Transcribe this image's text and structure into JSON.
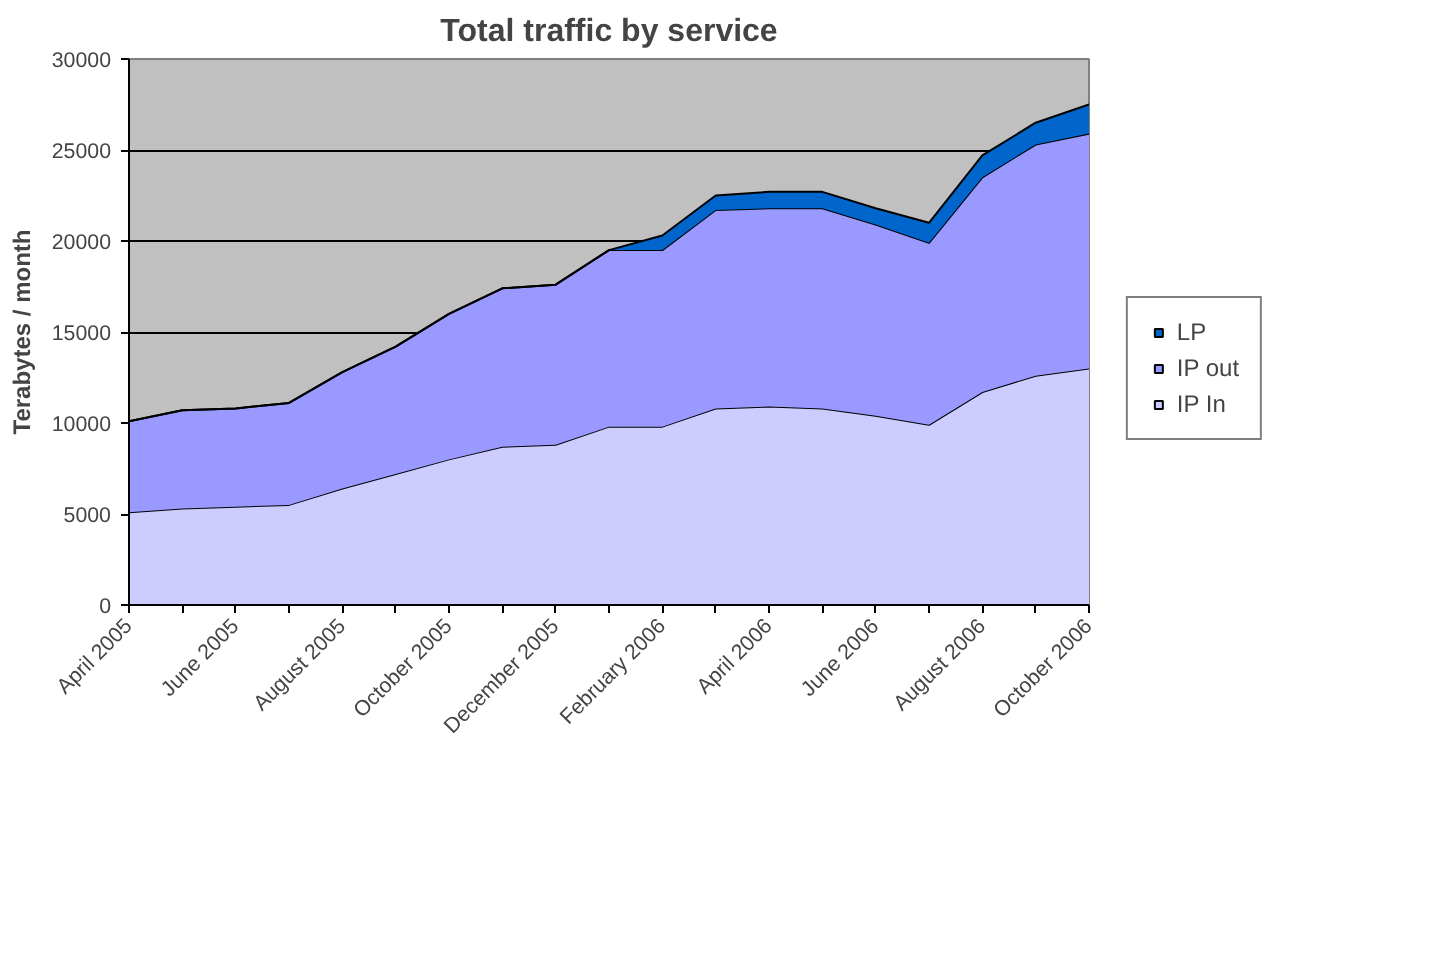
{
  "chart_data": {
    "type": "area",
    "stacked": true,
    "title": "Total traffic by service",
    "ylabel": "Terabytes / month",
    "categories": [
      "April 2005",
      null,
      "June 2005",
      null,
      "August 2005",
      null,
      "October 2005",
      null,
      "December 2005",
      null,
      "February 2006",
      null,
      "April 2006",
      null,
      "June 2006",
      null,
      "August 2006",
      null,
      "October 2006"
    ],
    "series": [
      {
        "name": "IP In",
        "color": "#ccccff",
        "values": [
          5100,
          5300,
          5400,
          5500,
          6400,
          7200,
          8000,
          8700,
          8800,
          9800,
          9800,
          10800,
          10900,
          10800,
          10400,
          9900,
          11700,
          12600,
          13000
        ]
      },
      {
        "name": "IP out",
        "color": "#9999ff",
        "values": [
          5000,
          5400,
          5400,
          5600,
          6400,
          7000,
          8000,
          8700,
          8800,
          9700,
          9700,
          10900,
          10900,
          11000,
          10500,
          10000,
          11800,
          12700,
          12900
        ]
      },
      {
        "name": "LP",
        "color": "#0066cc",
        "values": [
          0,
          0,
          0,
          0,
          0,
          0,
          0,
          0,
          0,
          0,
          800,
          800,
          900,
          900,
          900,
          1100,
          1200,
          1200,
          1600
        ]
      }
    ],
    "ylim": [
      0,
      30000
    ],
    "yticks": [
      0,
      5000,
      10000,
      15000,
      20000,
      25000,
      30000
    ],
    "grid": "y",
    "legend": "right"
  }
}
